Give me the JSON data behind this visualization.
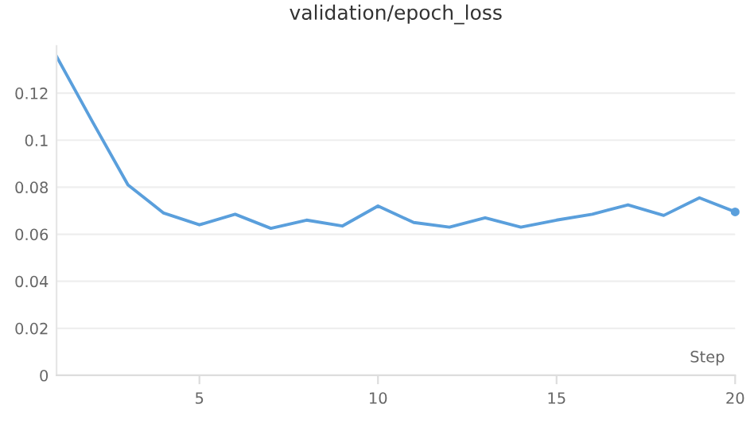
{
  "chart_data": {
    "type": "line",
    "title": "validation/epoch_loss",
    "xlabel": "Step",
    "x": [
      1,
      2,
      3,
      4,
      5,
      6,
      7,
      8,
      9,
      10,
      11,
      12,
      13,
      14,
      15,
      16,
      17,
      18,
      19,
      20
    ],
    "series": [
      {
        "color": "#5a9fdc",
        "values": [
          0.1356,
          0.108,
          0.081,
          0.069,
          0.064,
          0.0685,
          0.0625,
          0.066,
          0.0635,
          0.072,
          0.065,
          0.063,
          0.067,
          0.063,
          0.066,
          0.0685,
          0.0725,
          0.068,
          0.0755,
          0.0695
        ]
      }
    ],
    "xlim": [
      1,
      20
    ],
    "xticks": [
      5,
      10,
      15,
      20
    ],
    "ylim": [
      0,
      0.14
    ],
    "yticks": [
      0,
      0.02,
      0.04,
      0.06,
      0.08,
      0.1,
      0.12
    ],
    "grid": "y",
    "marker": "none",
    "line_style": "solid"
  }
}
